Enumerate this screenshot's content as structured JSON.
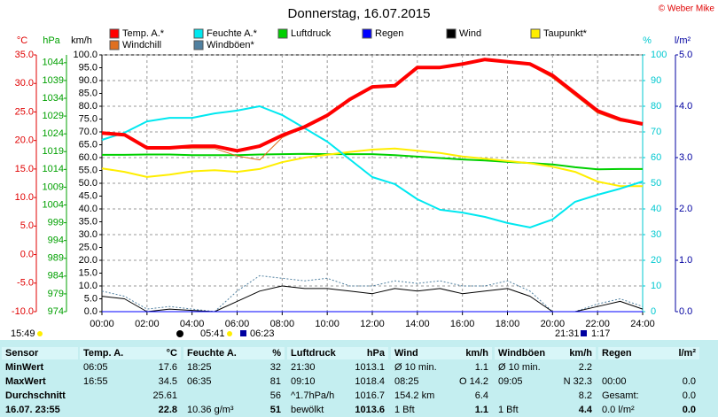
{
  "chart_data": {
    "type": "line",
    "title": "Donnerstag, 16.07.2015",
    "credit": "© Weber Mike",
    "ylabel": "°C",
    "y2label": "hPa",
    "y3label": "km/h",
    "y4label": "%",
    "y5label": "l/m²",
    "x": [
      0,
      1,
      2,
      3,
      4,
      5,
      6,
      7,
      8,
      9,
      10,
      11,
      12,
      13,
      14,
      15,
      16,
      17,
      18,
      19,
      20,
      21,
      22,
      23,
      24
    ],
    "xlim": [
      0,
      24
    ],
    "xticks": [
      {
        "value": 0,
        "label": "00:00"
      },
      {
        "value": 2,
        "label": "02:00"
      },
      {
        "value": 4,
        "label": "04:00"
      },
      {
        "value": 6,
        "label": "06:00"
      },
      {
        "value": 8,
        "label": "08:00"
      },
      {
        "value": 10,
        "label": "10:00"
      },
      {
        "value": 12,
        "label": "12:00"
      },
      {
        "value": 14,
        "label": "14:00"
      },
      {
        "value": 16,
        "label": "16:00"
      },
      {
        "value": 18,
        "label": "18:00"
      },
      {
        "value": 20,
        "label": "20:00"
      },
      {
        "value": 22,
        "label": "22:00"
      },
      {
        "value": 24,
        "label": "24:00"
      }
    ],
    "ylim": [
      -10,
      35
    ],
    "yticks": [
      {
        "value": 35,
        "label": "35.0"
      },
      {
        "value": 30,
        "label": "30.0"
      },
      {
        "value": 25,
        "label": "25.0"
      },
      {
        "value": 20,
        "label": "20.0"
      },
      {
        "value": 15,
        "label": "15.0"
      },
      {
        "value": 10,
        "label": "10.0"
      },
      {
        "value": 5,
        "label": "5.0"
      },
      {
        "value": 0,
        "label": "0.0"
      },
      {
        "value": -5,
        "label": "-5.0"
      },
      {
        "value": -10,
        "label": "-10.0"
      }
    ],
    "y2lim": [
      974,
      1046.2
    ],
    "y2ticks": [
      1044,
      1039,
      1034,
      1029,
      1024,
      1019,
      1014,
      1009,
      1004,
      999,
      994,
      989,
      984,
      979,
      974
    ],
    "y3lim": [
      0,
      100
    ],
    "y3ticks": [
      {
        "value": 100,
        "label": "100.0"
      },
      {
        "value": 95,
        "label": "95.0"
      },
      {
        "value": 90,
        "label": "90.0"
      },
      {
        "value": 85,
        "label": "85.0"
      },
      {
        "value": 80,
        "label": "80.0"
      },
      {
        "value": 75,
        "label": "75.0"
      },
      {
        "value": 70,
        "label": "70.0"
      },
      {
        "value": 65,
        "label": "65.0"
      },
      {
        "value": 60,
        "label": "60.0"
      },
      {
        "value": 55,
        "label": "55.0"
      },
      {
        "value": 50,
        "label": "50.0"
      },
      {
        "value": 45,
        "label": "45.0"
      },
      {
        "value": 40,
        "label": "40.0"
      },
      {
        "value": 35,
        "label": "35.0"
      },
      {
        "value": 30,
        "label": "30.0"
      },
      {
        "value": 25,
        "label": "25.0"
      },
      {
        "value": 20,
        "label": "20.0"
      },
      {
        "value": 15,
        "label": "15.0"
      },
      {
        "value": 10,
        "label": "10.0"
      },
      {
        "value": 5,
        "label": "5.0"
      },
      {
        "value": 0,
        "label": "0.0"
      }
    ],
    "y4lim": [
      0,
      100
    ],
    "y4ticks": [
      100,
      90,
      80,
      70,
      60,
      50,
      40,
      30,
      20,
      10,
      0
    ],
    "y5lim": [
      0,
      5
    ],
    "y5ticks": [
      {
        "value": 5,
        "label": "5.0"
      },
      {
        "value": 4,
        "label": "4.0"
      },
      {
        "value": 3,
        "label": "3.0"
      },
      {
        "value": 2,
        "label": "2.0"
      },
      {
        "value": 1,
        "label": "1.0"
      },
      {
        "value": 0,
        "label": "0.0"
      }
    ],
    "grid": true,
    "series": [
      {
        "name": "Temp. A.*",
        "color": "#ff0000",
        "axis": "y",
        "width": 4,
        "values": [
          21.3,
          21.0,
          18.7,
          18.7,
          19.0,
          19.0,
          18.2,
          19.0,
          20.9,
          22.4,
          24.4,
          27.2,
          29.4,
          29.6,
          32.8,
          32.8,
          33.4,
          34.2,
          33.8,
          33.4,
          31.4,
          28.3,
          25.2,
          23.7,
          22.9
        ]
      },
      {
        "name": "Feuchte A.*",
        "color": "#00e8f0",
        "axis": "y4",
        "width": 2,
        "values": [
          66.9,
          69.7,
          74.1,
          75.5,
          75.5,
          77.2,
          78.3,
          80.0,
          76.6,
          71.4,
          66.2,
          59.3,
          52.4,
          49.7,
          43.8,
          39.7,
          38.6,
          36.9,
          34.5,
          32.8,
          35.9,
          42.8,
          45.5,
          47.9,
          50.7
        ]
      },
      {
        "name": "Luftdruck",
        "color": "#00d000",
        "axis": "y2",
        "width": 2,
        "values": [
          1018.1,
          1018.1,
          1018.2,
          1018.2,
          1018.0,
          1018.0,
          1018.0,
          1018.2,
          1018.3,
          1018.4,
          1018.3,
          1018.3,
          1018.3,
          1018.0,
          1017.6,
          1017.2,
          1016.8,
          1016.5,
          1016.1,
          1015.8,
          1015.4,
          1014.6,
          1014.0,
          1014.1,
          1014.1
        ]
      },
      {
        "name": "Regen",
        "color": "#0000ff",
        "axis": "y5",
        "width": 1,
        "values": [
          0,
          0,
          0,
          0,
          0,
          0,
          0,
          0,
          0,
          0,
          0,
          0,
          0,
          0,
          0,
          0,
          0,
          0,
          0,
          0,
          0,
          0,
          0,
          0,
          0
        ]
      },
      {
        "name": "Wind",
        "color": "#000000",
        "axis": "y3",
        "width": 1,
        "values": [
          6,
          5,
          0,
          1,
          0.5,
          0,
          4,
          8,
          10,
          9,
          9,
          8,
          7,
          9,
          8,
          9,
          7,
          8,
          9,
          6,
          0,
          0,
          2,
          4,
          1
        ]
      },
      {
        "name": "Taupunkt*",
        "color": "#ffee00",
        "axis": "y",
        "width": 2,
        "values": [
          15.1,
          14.5,
          13.6,
          14.0,
          14.6,
          14.8,
          14.5,
          15.0,
          16.2,
          17.0,
          17.5,
          18.0,
          18.4,
          18.6,
          18.2,
          17.8,
          17.2,
          16.8,
          16.4,
          16.0,
          15.4,
          14.5,
          12.8,
          12.0,
          12.0
        ]
      },
      {
        "name": "Windchill",
        "color": "#e07020",
        "axis": "y",
        "width": 1,
        "values": [
          21.3,
          21.0,
          18.7,
          18.7,
          18.6,
          18.6,
          17.3,
          16.6,
          20.5,
          22.4,
          24.6,
          27.4,
          29.4,
          29.8,
          33.0,
          32.8,
          33.4,
          34.2,
          33.8,
          33.2,
          31.0,
          27.9,
          24.8,
          23.4,
          22.8
        ]
      },
      {
        "name": "Windböen*",
        "color": "#5080a0",
        "axis": "y3",
        "width": 1,
        "dash": true,
        "values": [
          8,
          6,
          1,
          2,
          1,
          0,
          8,
          14,
          13,
          12,
          13,
          10,
          10,
          12,
          11,
          12,
          10,
          10,
          12,
          8,
          0,
          0,
          3,
          5,
          2
        ]
      }
    ]
  },
  "timeline": [
    "15:49",
    "05:41",
    "06:23",
    "21:31",
    "1:17"
  ],
  "table": {
    "sensor": "Sensor",
    "columns": [
      {
        "name": "Temp. A.",
        "unit": "°C"
      },
      {
        "name": "Feuchte A.",
        "unit": "%"
      },
      {
        "name": "Luftdruck",
        "unit": "hPa"
      },
      {
        "name": "Wind",
        "unit": "km/h"
      },
      {
        "name": "Windböen",
        "unit": "km/h"
      },
      {
        "name": "Regen",
        "unit": "l/m²"
      }
    ],
    "rows": [
      {
        "label": "MinWert",
        "cells": [
          [
            "06:05",
            "17.6"
          ],
          [
            "18:25",
            "32"
          ],
          [
            "21:30",
            "1013.1"
          ],
          [
            "Ø 10 min.",
            "1.1"
          ],
          [
            "Ø 10 min.",
            "2.2"
          ],
          null
        ]
      },
      {
        "label": "MaxWert",
        "cells": [
          [
            "16:55",
            "34.5"
          ],
          [
            "06:35",
            "81"
          ],
          [
            "09:10",
            "1018.4"
          ],
          [
            "08:25",
            "O 14.2"
          ],
          [
            "09:05",
            "N 32.3"
          ],
          [
            "00:00",
            "0.0"
          ]
        ]
      },
      {
        "label": "Durchschnitt",
        "cells": [
          [
            null,
            "25.61"
          ],
          [
            null,
            "56"
          ],
          [
            "^1.7hPa/h",
            "1016.7"
          ],
          [
            "154.2 km",
            "6.4"
          ],
          [
            null,
            "8.2"
          ],
          [
            "Gesamt:",
            "0.0"
          ]
        ]
      },
      {
        "label": "16.07. 23:55",
        "cells": [
          [
            null,
            "22.8"
          ],
          [
            "10.36 g/m³",
            "51"
          ],
          [
            "bewölkt",
            "1013.6"
          ],
          [
            "1 Bft",
            "1.1"
          ],
          [
            "1 Bft",
            "4.4"
          ],
          [
            "0.0 l/m²",
            "0.0"
          ]
        ]
      }
    ]
  }
}
